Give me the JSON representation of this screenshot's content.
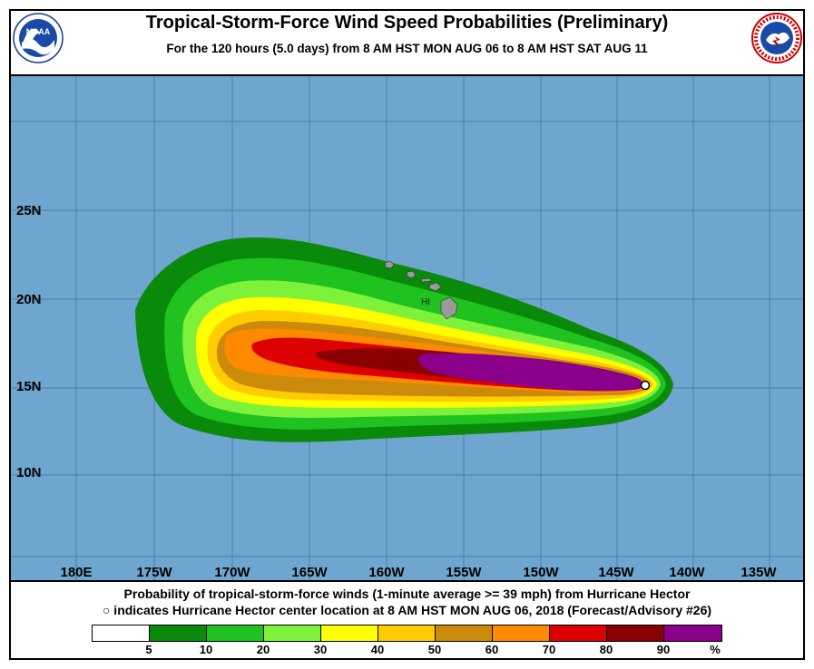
{
  "header": {
    "title": "Tropical-Storm-Force Wind Speed Probabilities (Preliminary)",
    "subtitle": "For the 120 hours (5.0 days) from 8 AM HST MON AUG 06 to 8 AM HST SAT AUG 11"
  },
  "logos": {
    "left": {
      "text": "NOAA",
      "icon": "noaa-logo"
    },
    "right": {
      "icon": "nws-logo"
    }
  },
  "map": {
    "ocean_color": "#6fa6cf",
    "grid_color": "#4a7fa8",
    "land_color": "#9a9a9a",
    "latitudes": [
      "25N",
      "20N",
      "15N",
      "10N"
    ],
    "longitudes": [
      "180E",
      "175W",
      "170W",
      "165W",
      "160W",
      "155W",
      "150W",
      "145W",
      "140W",
      "135W"
    ],
    "place_label": "HI",
    "storm_center": {
      "lon": -142.4,
      "lat": 15.1
    }
  },
  "caption": {
    "line1": "Probability of tropical-storm-force winds (1-minute average >= 39 mph) from Hurricane Hector",
    "line2": "○ indicates Hurricane Hector center location at 8 AM HST MON AUG 06, 2018 (Forecast/Advisory #26)"
  },
  "legend": {
    "colors": [
      "#ffffff",
      "#0a8a0a",
      "#1fc21f",
      "#7ef23a",
      "#ffff00",
      "#ffcc00",
      "#cc8a0a",
      "#ff8a00",
      "#dd0000",
      "#8a0000",
      "#8a008a"
    ],
    "labels": [
      "5",
      "10",
      "20",
      "30",
      "40",
      "50",
      "60",
      "70",
      "80",
      "90",
      "%"
    ]
  }
}
